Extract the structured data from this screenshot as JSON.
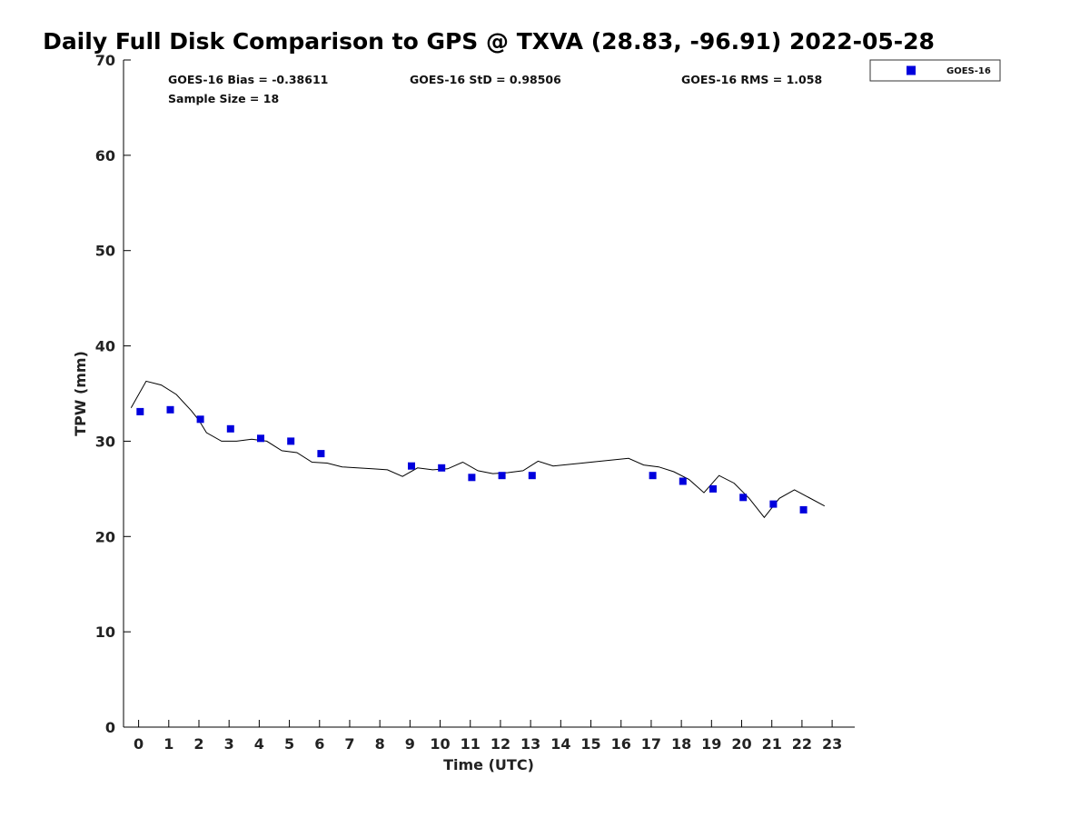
{
  "chart_data": {
    "type": "scatter",
    "title": "Daily Full Disk Comparison to GPS @ TXVA (28.83, -96.91) 2022-05-28",
    "xlabel": "Time (UTC)",
    "ylabel": "TPW (mm)",
    "xlim": [
      -0.5,
      23.75
    ],
    "ylim": [
      0,
      70
    ],
    "xticks": [
      "0",
      "1",
      "2",
      "3",
      "4",
      "5",
      "6",
      "7",
      "8",
      "9",
      "10",
      "11",
      "12",
      "13",
      "14",
      "15",
      "16",
      "17",
      "18",
      "19",
      "20",
      "21",
      "22",
      "23"
    ],
    "yticks": [
      "0",
      "10",
      "20",
      "30",
      "40",
      "50",
      "60",
      "70"
    ],
    "grid": false,
    "legend": {
      "position": "top-right",
      "entries": [
        "GOES-16"
      ]
    },
    "colors": {
      "goes16": "#0000dd",
      "gps": "#000000"
    },
    "stats": {
      "bias": "GOES-16 Bias = -0.38611",
      "std": "GOES-16 StD = 0.98506",
      "rms": "GOES-16 RMS = 1.058",
      "sample": "Sample Size = 18"
    },
    "series": [
      {
        "name": "GOES-16",
        "kind": "scatter",
        "x": [
          0.05,
          1.05,
          2.05,
          3.05,
          4.05,
          5.05,
          6.05,
          9.05,
          10.05,
          11.05,
          12.05,
          13.05,
          17.05,
          18.05,
          19.05,
          20.05,
          21.05,
          22.05
        ],
        "y": [
          33.1,
          33.3,
          32.3,
          31.3,
          30.3,
          30.0,
          28.7,
          27.4,
          27.2,
          26.2,
          26.4,
          26.4,
          26.4,
          25.8,
          25.0,
          24.1,
          23.4,
          22.8
        ]
      },
      {
        "kind": "line",
        "x": [
          -0.25,
          0.25,
          0.75,
          1.25,
          1.75,
          2.0,
          2.25,
          2.75,
          3.25,
          3.75,
          4.25,
          4.75,
          5.25,
          5.75,
          6.25,
          6.75,
          7.25,
          7.75,
          8.25,
          8.75,
          9.25,
          9.75,
          10.25,
          10.75,
          11.25,
          11.75,
          12.25,
          12.75,
          13.25,
          13.75,
          16.25,
          16.75,
          17.25,
          17.75,
          18.25,
          18.75,
          19.25,
          19.75,
          20.25,
          20.75,
          21.25,
          21.75,
          22.75
        ],
        "y": [
          33.5,
          36.3,
          35.9,
          34.9,
          33.2,
          32.2,
          30.9,
          30.0,
          30.0,
          30.2,
          30.0,
          29.0,
          28.8,
          27.8,
          27.7,
          27.3,
          27.2,
          27.1,
          27.0,
          26.3,
          27.2,
          27.0,
          27.1,
          27.8,
          26.9,
          26.6,
          26.7,
          26.9,
          27.9,
          27.4,
          28.2,
          27.5,
          27.3,
          26.8,
          26.0,
          24.6,
          26.4,
          25.6,
          24.0,
          22.0,
          24.0,
          24.9,
          23.2
        ]
      }
    ]
  }
}
